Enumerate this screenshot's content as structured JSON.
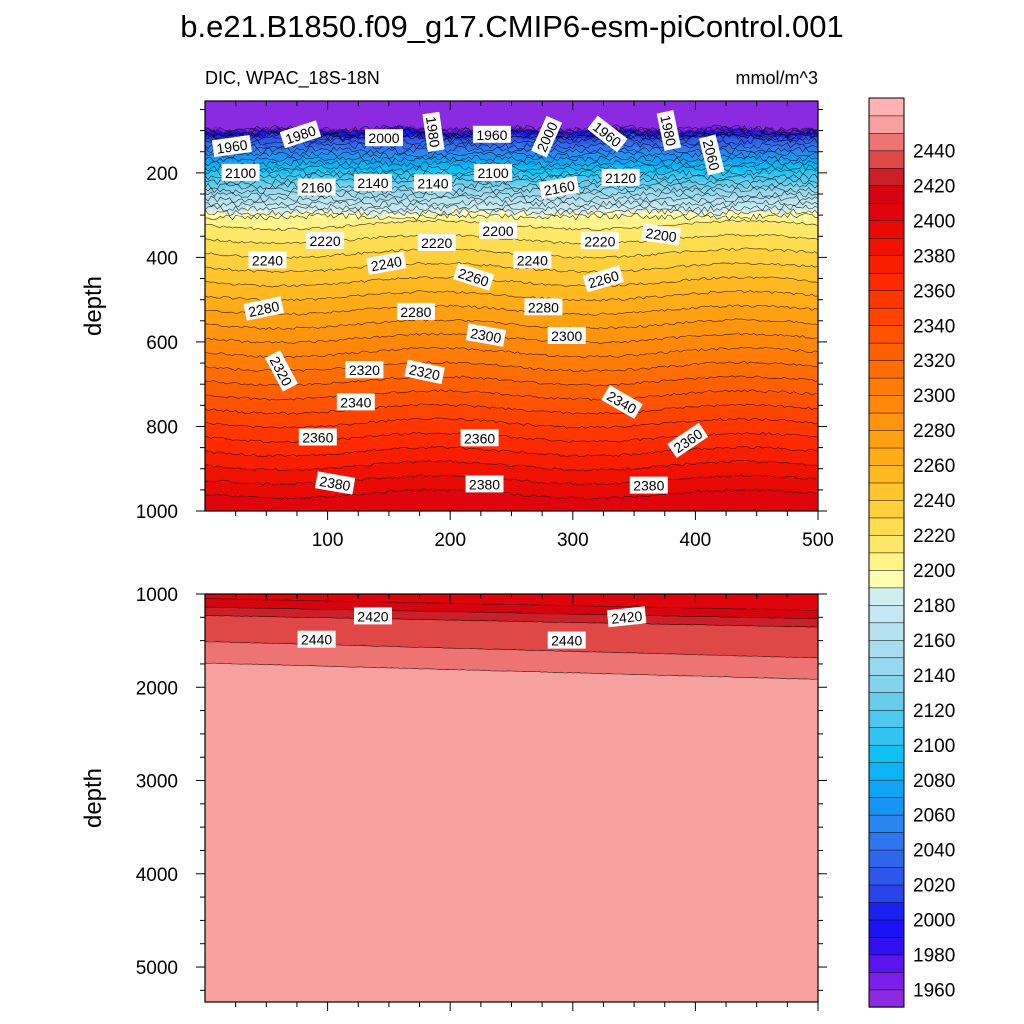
{
  "chart_data": {
    "type": "heatmap",
    "title": "b.e21.B1850.f09_g17.CMIP6-esm-piControl.001",
    "left_subtitle": "DIC, WPAC_18S-18N",
    "right_subtitle": "mmol/m^3",
    "colorbar": {
      "levels": [
        1960,
        1980,
        2000,
        2020,
        2040,
        2060,
        2080,
        2100,
        2120,
        2140,
        2160,
        2180,
        2200,
        2220,
        2240,
        2260,
        2280,
        2300,
        2320,
        2340,
        2360,
        2380,
        2400,
        2420,
        2440
      ],
      "level_step": 10,
      "labeled_step": 20,
      "colors": [
        "#8a2be2",
        "#7a1fe8",
        "#5a14ee",
        "#3010f0",
        "#1a12f2",
        "#1a22f0",
        "#2a44ec",
        "#2e56ea",
        "#2f66ec",
        "#2f76ee",
        "#2a86f0",
        "#1a94f2",
        "#12a4f4",
        "#0cb4f4",
        "#10c2f4",
        "#34c4f2",
        "#4ec8f0",
        "#68cdea",
        "#84d2ec",
        "#98d8ee",
        "#a8dcef",
        "#b6e2f0",
        "#c4e8f2",
        "#d0eef2",
        "#fefeb0",
        "#fff38a",
        "#ffe768",
        "#ffdc50",
        "#ffd03c",
        "#ffc42e",
        "#ffb820",
        "#ffac18",
        "#ffa012",
        "#ff940e",
        "#ff880a",
        "#ff7c08",
        "#ff6e06",
        "#ff6004",
        "#ff5202",
        "#ff4400",
        "#ff3600",
        "#ff2a00",
        "#f81e00",
        "#f01200",
        "#e80a04",
        "#e0040c",
        "#d60410",
        "#cc2028",
        "#e04848",
        "#ee7474",
        "#f6a0a0",
        "#ffb2b2"
      ]
    },
    "panels": [
      {
        "name": "upper",
        "ylabel": "depth",
        "xlim": [
          0,
          500
        ],
        "ylim": [
          30,
          1000
        ],
        "x_ticks": [
          100,
          200,
          300,
          400,
          500
        ],
        "y_ticks": [
          200,
          400,
          600,
          800,
          1000
        ],
        "contour_labels": [
          {
            "text": "1960",
            "x": 22,
            "y": 138,
            "rot": -8
          },
          {
            "text": "1980",
            "x": 78,
            "y": 110,
            "rot": -18
          },
          {
            "text": "2000",
            "x": 146,
            "y": 118,
            "rot": 0
          },
          {
            "text": "1980",
            "x": 186,
            "y": 103,
            "rot": 82
          },
          {
            "text": "1960",
            "x": 234,
            "y": 110,
            "rot": 0
          },
          {
            "text": "2000",
            "x": 279,
            "y": 115,
            "rot": -66
          },
          {
            "text": "1960",
            "x": 328,
            "y": 109,
            "rot": 38
          },
          {
            "text": "1980",
            "x": 378,
            "y": 100,
            "rot": 78
          },
          {
            "text": "2060",
            "x": 413,
            "y": 158,
            "rot": 76
          },
          {
            "text": "2100",
            "x": 29,
            "y": 200,
            "rot": 0
          },
          {
            "text": "2160",
            "x": 91,
            "y": 235,
            "rot": 0
          },
          {
            "text": "2140",
            "x": 137,
            "y": 224,
            "rot": 0
          },
          {
            "text": "2140",
            "x": 186,
            "y": 225,
            "rot": 0
          },
          {
            "text": "2100",
            "x": 235,
            "y": 200,
            "rot": 0
          },
          {
            "text": "2160",
            "x": 289,
            "y": 236,
            "rot": -10
          },
          {
            "text": "2120",
            "x": 339,
            "y": 212,
            "rot": 0
          },
          {
            "text": "2220",
            "x": 98,
            "y": 361,
            "rot": 0
          },
          {
            "text": "2200",
            "x": 239,
            "y": 337,
            "rot": 0
          },
          {
            "text": "2220",
            "x": 189,
            "y": 366,
            "rot": 0
          },
          {
            "text": "2220",
            "x": 322,
            "y": 362,
            "rot": 0
          },
          {
            "text": "2200",
            "x": 372,
            "y": 347,
            "rot": 8
          },
          {
            "text": "2240",
            "x": 51,
            "y": 407,
            "rot": 0
          },
          {
            "text": "2240",
            "x": 148,
            "y": 415,
            "rot": -10
          },
          {
            "text": "2240",
            "x": 267,
            "y": 407,
            "rot": 0
          },
          {
            "text": "2260",
            "x": 219,
            "y": 447,
            "rot": 18
          },
          {
            "text": "2260",
            "x": 325,
            "y": 452,
            "rot": -16
          },
          {
            "text": "2280",
            "x": 48,
            "y": 522,
            "rot": -12
          },
          {
            "text": "2280",
            "x": 172,
            "y": 529,
            "rot": 0
          },
          {
            "text": "2280",
            "x": 276,
            "y": 518,
            "rot": 0
          },
          {
            "text": "2300",
            "x": 229,
            "y": 585,
            "rot": 10
          },
          {
            "text": "2300",
            "x": 295,
            "y": 586,
            "rot": 0
          },
          {
            "text": "2320",
            "x": 62,
            "y": 669,
            "rot": 62
          },
          {
            "text": "2320",
            "x": 130,
            "y": 667,
            "rot": 0
          },
          {
            "text": "2320",
            "x": 179,
            "y": 672,
            "rot": 12
          },
          {
            "text": "2340",
            "x": 123,
            "y": 743,
            "rot": 0
          },
          {
            "text": "2340",
            "x": 340,
            "y": 743,
            "rot": 30
          },
          {
            "text": "2360",
            "x": 92,
            "y": 826,
            "rot": 0
          },
          {
            "text": "2360",
            "x": 224,
            "y": 828,
            "rot": 0
          },
          {
            "text": "2360",
            "x": 394,
            "y": 834,
            "rot": -34
          },
          {
            "text": "2380",
            "x": 106,
            "y": 935,
            "rot": 10
          },
          {
            "text": "2380",
            "x": 228,
            "y": 937,
            "rot": 0
          },
          {
            "text": "2380",
            "x": 362,
            "y": 940,
            "rot": 0
          }
        ]
      },
      {
        "name": "lower",
        "ylabel": "depth",
        "xlim": [
          0,
          500
        ],
        "ylim": [
          1000,
          5375
        ],
        "y_ticks": [
          1000,
          2000,
          3000,
          4000,
          5000
        ],
        "contour_labels": [
          {
            "text": "2420",
            "x": 137,
            "y": 1240,
            "rot": 0
          },
          {
            "text": "2420",
            "x": 344,
            "y": 1250,
            "rot": -6
          },
          {
            "text": "2440",
            "x": 91,
            "y": 1490,
            "rot": 0
          },
          {
            "text": "2440",
            "x": 295,
            "y": 1500,
            "rot": 0
          }
        ]
      }
    ]
  }
}
